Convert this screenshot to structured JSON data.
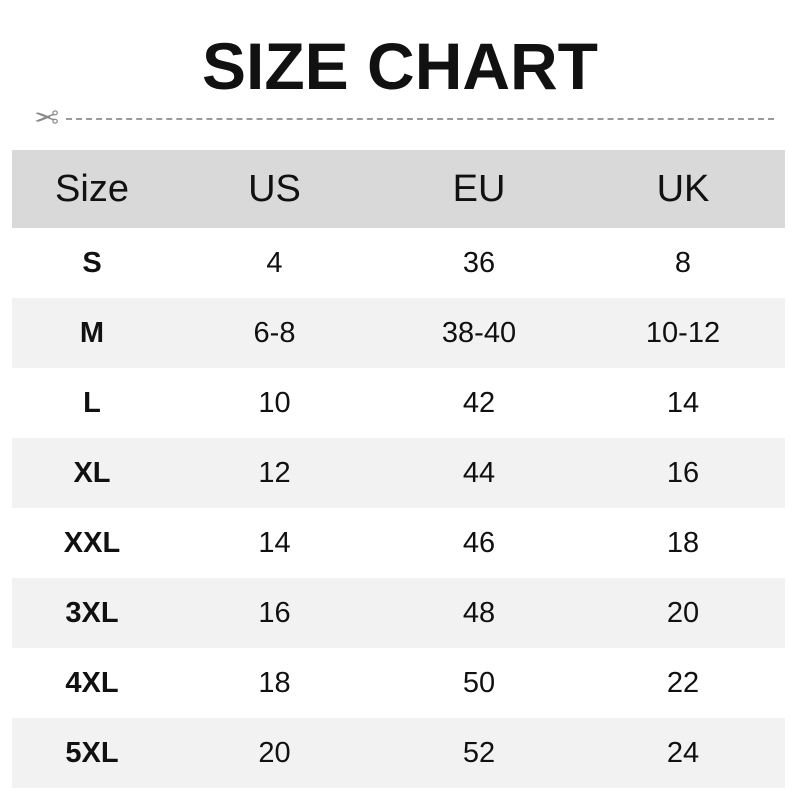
{
  "title": "SIZE CHART",
  "icons": {
    "cut": "scissors-icon"
  },
  "colors": {
    "header_bg": "#d9d9d9",
    "alt_row_bg": "#f2f2f2"
  },
  "table": {
    "headers": [
      "Size",
      "US",
      "EU",
      "UK"
    ],
    "rows": [
      [
        "S",
        "4",
        "36",
        "8"
      ],
      [
        "M",
        "6-8",
        "38-40",
        "10-12"
      ],
      [
        "L",
        "10",
        "42",
        "14"
      ],
      [
        "XL",
        "12",
        "44",
        "16"
      ],
      [
        "XXL",
        "14",
        "46",
        "18"
      ],
      [
        "3XL",
        "16",
        "48",
        "20"
      ],
      [
        "4XL",
        "18",
        "50",
        "22"
      ],
      [
        "5XL",
        "20",
        "52",
        "24"
      ]
    ]
  }
}
